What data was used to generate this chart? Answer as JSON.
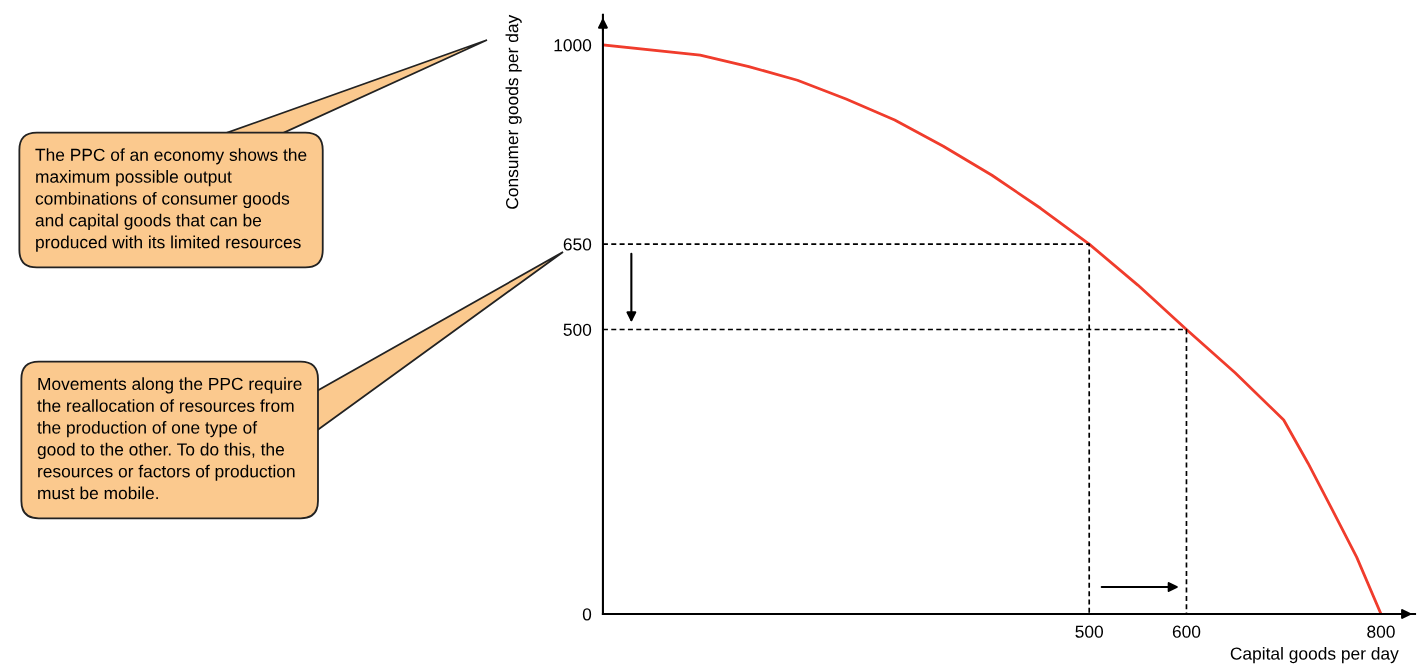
{
  "chart_data": {
    "type": "line",
    "xlabel": "Capital goods per day",
    "ylabel": "Consumer goods per day",
    "xlim": [
      0,
      835
    ],
    "ylim": [
      0,
      1053
    ],
    "xticks": [
      500,
      600,
      800
    ],
    "yticks": [
      0,
      500,
      650,
      1000
    ],
    "grid": false,
    "legend": false,
    "series": [
      {
        "color": "#f03c2c",
        "x": [
          0,
          100,
          150,
          200,
          250,
          300,
          350,
          400,
          450,
          500,
          550,
          600,
          650,
          700,
          725,
          750,
          775,
          800
        ],
        "values": [
          1000,
          982,
          962,
          938,
          905,
          868,
          822,
          771,
          713,
          650,
          578,
          500,
          424,
          341,
          265,
          183,
          100,
          0
        ],
        "line_style": "solid"
      },
      {
        "color": "#000000",
        "x": [
          0,
          500,
          500
        ],
        "values": [
          650,
          650,
          0
        ],
        "line_style": "dashed"
      },
      {
        "color": "#000000",
        "x": [
          0,
          600,
          600
        ],
        "values": [
          500,
          500,
          0
        ],
        "line_style": "dashed"
      }
    ],
    "annotations": [
      "The PPC of an economy shows the\nmaximum possible output\ncombinations of consumer goods\nand capital goods that can be\nproduced with its limited resources",
      "Movements along the PPC require\nthe reallocation of resources from\nthe production of one type of\ngood to the other. To do this, the\nresources or factors of production\nmust be mobile."
    ]
  }
}
